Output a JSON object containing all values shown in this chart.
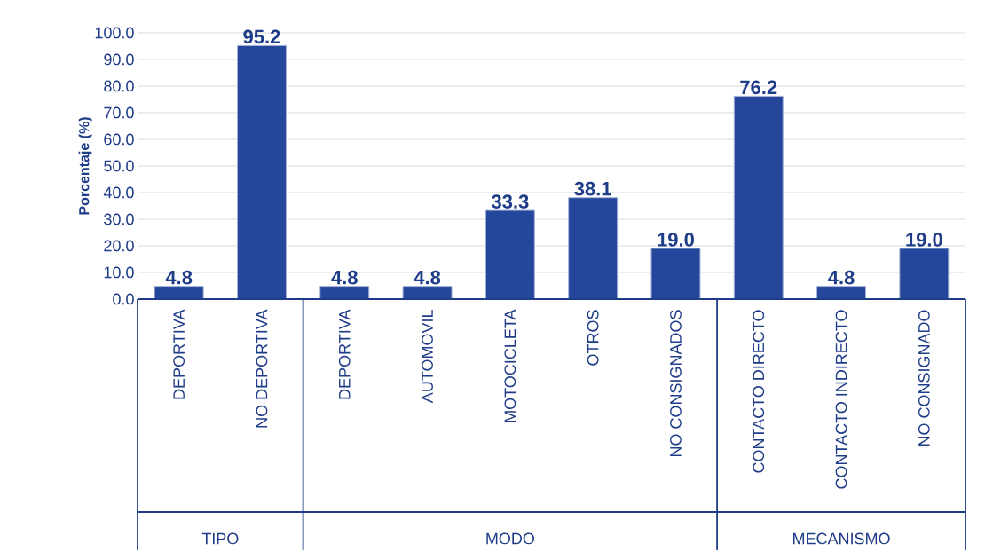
{
  "chart_data": {
    "type": "bar",
    "ylabel": "Porcentaje (%)",
    "categories": [
      "DEPORTIVA",
      "NO DEPORTIVA",
      "DEPORTIVA",
      "AUTOMOVIL",
      "MOTOCICLETA",
      "OTROS",
      "NO CONSIGNADOS",
      "CONTACTO DIRECTO",
      "CONTACTO INDIRECTO",
      "NO CONSIGNADO"
    ],
    "values": [
      4.8,
      95.2,
      4.8,
      4.8,
      33.3,
      38.1,
      19.0,
      76.2,
      4.8,
      19.0
    ],
    "value_labels": [
      "4.8",
      "95.2",
      "4.8",
      "4.8",
      "33.3",
      "38.1",
      "19.0",
      "76.2",
      "4.8",
      "19.0"
    ],
    "color": "#24469b",
    "annotations": [
      "TIPO",
      "MODO",
      "MECANISMO"
    ],
    "ylim": [
      0,
      100
    ],
    "yticks": [
      {
        "value": 0,
        "label": "0.0"
      },
      {
        "value": 10,
        "label": "10.0"
      },
      {
        "value": 20,
        "label": "20.0"
      },
      {
        "value": 30,
        "label": "30.0"
      },
      {
        "value": 40,
        "label": "40.0"
      },
      {
        "value": 50,
        "label": "50.0"
      },
      {
        "value": 60,
        "label": "60.0"
      },
      {
        "value": 70,
        "label": "70.0"
      },
      {
        "value": 80,
        "label": "80.0"
      },
      {
        "value": 90,
        "label": "90.0"
      },
      {
        "value": 100,
        "label": "100.0"
      }
    ],
    "grid": "y"
  }
}
